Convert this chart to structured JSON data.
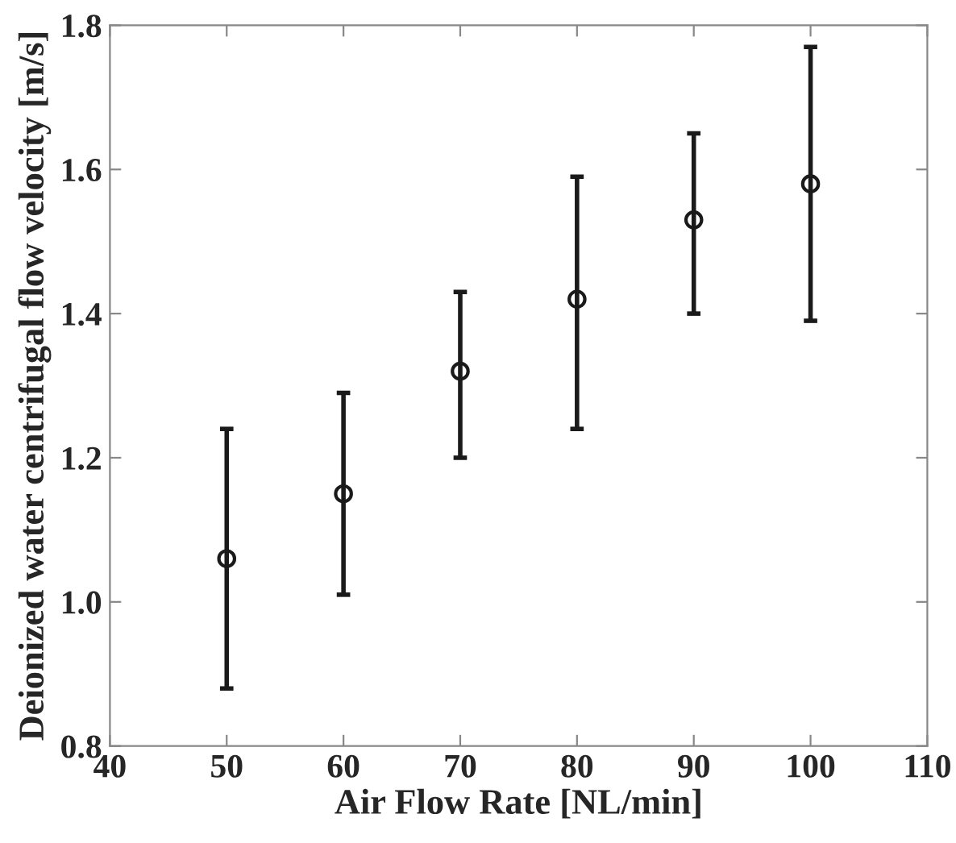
{
  "chart_data": {
    "type": "scatter",
    "xlabel": "Air Flow Rate [NL/min]",
    "ylabel": "Deionized water centrifugal flow velocity [m/s]",
    "x": [
      50,
      60,
      70,
      80,
      90,
      100
    ],
    "values": [
      1.06,
      1.15,
      1.32,
      1.42,
      1.53,
      1.58
    ],
    "errors": [
      [
        0.88,
        1.24
      ],
      [
        1.01,
        1.29
      ],
      [
        1.2,
        1.43
      ],
      [
        1.24,
        1.59
      ],
      [
        1.4,
        1.65
      ],
      [
        1.39,
        1.77
      ]
    ],
    "color": "#1a1a1a",
    "marker": "circle",
    "xlim": [
      40,
      110
    ],
    "xticks": [
      40,
      50,
      60,
      70,
      80,
      90,
      100,
      110
    ],
    "ylim": [
      0.8,
      1.8
    ],
    "yticks": [
      {
        "value": 0.8,
        "label": "0.8"
      },
      {
        "value": 1.0,
        "label": "1.0"
      },
      {
        "value": 1.2,
        "label": "1.2"
      },
      {
        "value": 1.4,
        "label": "1.4"
      },
      {
        "value": 1.6,
        "label": "1.6"
      },
      {
        "value": 1.8,
        "label": "1.8"
      }
    ],
    "grid": false,
    "legend": false
  }
}
